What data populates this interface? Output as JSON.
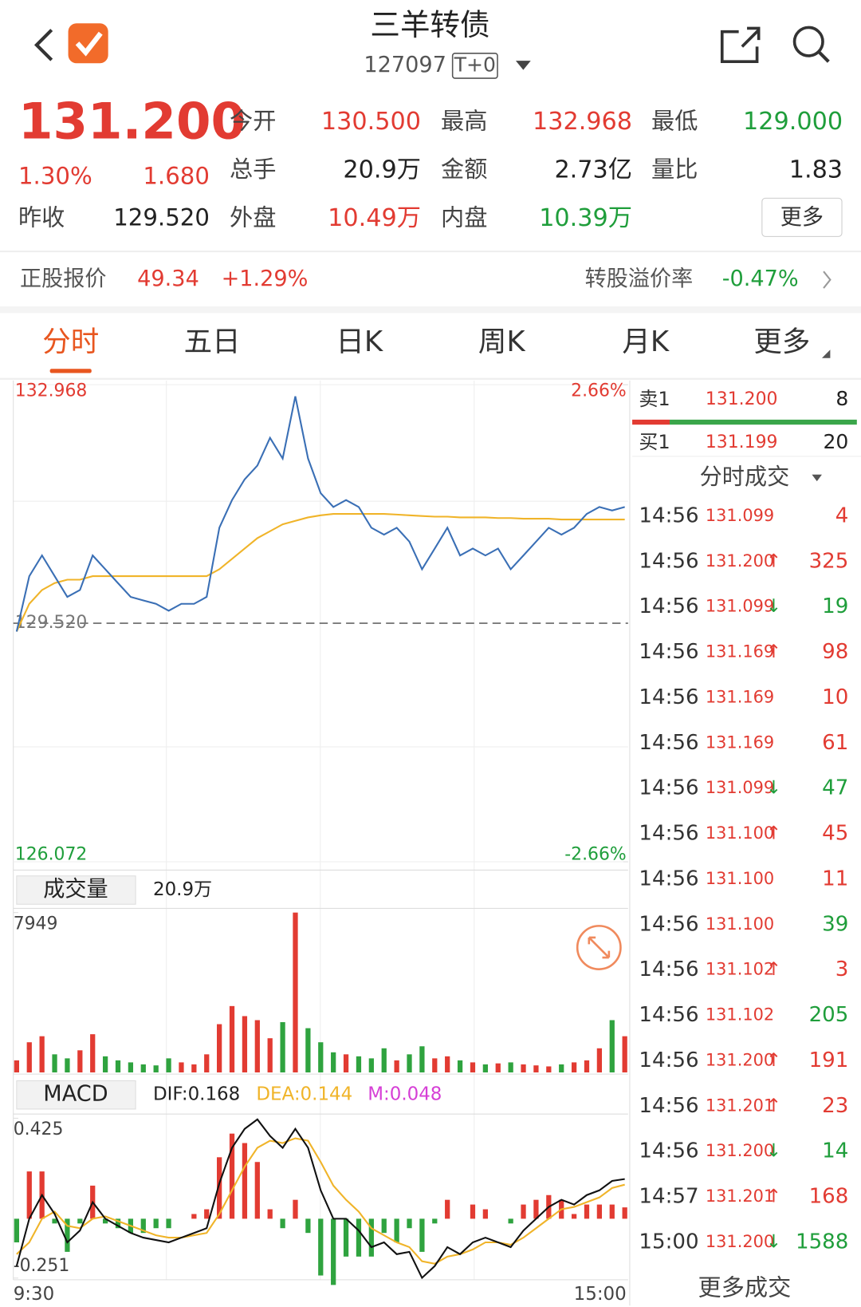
{
  "header": {
    "title": "三羊转债",
    "code": "127097",
    "tag": "T+0"
  },
  "quote": {
    "price": "131.200",
    "change_pct": "1.30%",
    "change": "1.680",
    "prev_close": {
      "label": "昨收",
      "value": "129.520"
    },
    "grid": [
      [
        {
          "label": "今开",
          "value": "130.500",
          "color": "red"
        },
        {
          "label": "最高",
          "value": "132.968",
          "color": "red"
        },
        {
          "label": "最低",
          "value": "129.000",
          "color": "green"
        }
      ],
      [
        {
          "label": "总手",
          "value": "20.9万",
          "color": "black"
        },
        {
          "label": "金额",
          "value": "2.73亿",
          "color": "black"
        },
        {
          "label": "量比",
          "value": "1.83",
          "color": "black"
        }
      ],
      [
        {
          "label": "外盘",
          "value": "10.49万",
          "color": "red"
        },
        {
          "label": "内盘",
          "value": "10.39万",
          "color": "green"
        }
      ]
    ],
    "more_button": "更多"
  },
  "stock": {
    "label": "正股报价",
    "price": "49.34",
    "change": "+1.29%",
    "premium_label": "转股溢价率",
    "premium": "-0.47%"
  },
  "tabs": [
    "分时",
    "五日",
    "日K",
    "周K",
    "月K",
    "更多"
  ],
  "active_tab": 0,
  "intraday": {
    "ylim": [
      126.072,
      132.968
    ],
    "yticks": [
      132.968,
      126.072
    ],
    "y2lim": [
      -2.66,
      2.66
    ],
    "y2ticks": [
      {
        "value": 2.66,
        "label": "2.66%"
      },
      {
        "value": -2.66,
        "label": "-2.66%"
      }
    ],
    "prev_close": {
      "value": 129.52,
      "label": "129.520"
    },
    "price_color": "#3a6fb5",
    "avg_color": "#f0b429",
    "price": [
      129.4,
      130.2,
      130.5,
      130.2,
      129.9,
      130.0,
      130.5,
      130.3,
      130.1,
      129.9,
      129.85,
      129.8,
      129.7,
      129.8,
      129.8,
      129.9,
      130.9,
      131.3,
      131.6,
      131.8,
      132.2,
      131.9,
      132.8,
      131.9,
      131.4,
      131.2,
      131.3,
      131.2,
      130.9,
      130.8,
      130.9,
      130.7,
      130.3,
      130.6,
      130.9,
      130.5,
      130.6,
      130.5,
      130.6,
      130.3,
      130.5,
      130.7,
      130.9,
      130.8,
      130.9,
      131.1,
      131.2,
      131.15,
      131.2
    ],
    "avg": [
      129.4,
      129.8,
      130.0,
      130.1,
      130.15,
      130.15,
      130.2,
      130.2,
      130.2,
      130.2,
      130.2,
      130.2,
      130.2,
      130.2,
      130.2,
      130.2,
      130.3,
      130.45,
      130.6,
      130.75,
      130.85,
      130.95,
      131.0,
      131.05,
      131.08,
      131.1,
      131.1,
      131.1,
      131.1,
      131.1,
      131.09,
      131.08,
      131.07,
      131.06,
      131.06,
      131.05,
      131.05,
      131.05,
      131.04,
      131.04,
      131.03,
      131.03,
      131.03,
      131.02,
      131.02,
      131.02,
      131.02,
      131.02,
      131.02
    ]
  },
  "volume": {
    "title": "成交量",
    "total": "20.9万",
    "ylim": [
      0,
      7949
    ],
    "yticks": [
      7949
    ],
    "values": [
      600,
      1500,
      1800,
      900,
      700,
      1100,
      1900,
      800,
      600,
      500,
      400,
      350,
      700,
      500,
      400,
      900,
      2400,
      3300,
      2800,
      2600,
      1700,
      2500,
      7949,
      2200,
      1500,
      1000,
      900,
      800,
      700,
      1200,
      600,
      900,
      1300,
      700,
      800,
      600,
      500,
      400,
      450,
      500,
      400,
      350,
      300,
      400,
      500,
      600,
      1200,
      2600,
      1800
    ]
  },
  "macd": {
    "title": "MACD",
    "dif_label": "DIF:0.168",
    "dea_label": "DEA:0.144",
    "m_label": "M:0.048",
    "ylim": [
      -0.251,
      0.425
    ],
    "yticks": [
      0.425,
      -0.251
    ],
    "dif": [
      -0.2,
      0.0,
      0.1,
      0.02,
      -0.1,
      -0.05,
      0.07,
      0.0,
      -0.03,
      -0.06,
      -0.08,
      -0.09,
      -0.1,
      -0.08,
      -0.06,
      -0.04,
      0.15,
      0.3,
      0.38,
      0.42,
      0.35,
      0.3,
      0.38,
      0.3,
      0.12,
      0.0,
      0.0,
      -0.05,
      -0.12,
      -0.1,
      -0.15,
      -0.14,
      -0.25,
      -0.2,
      -0.12,
      -0.15,
      -0.1,
      -0.08,
      -0.1,
      -0.12,
      -0.05,
      0.0,
      0.05,
      0.08,
      0.06,
      0.1,
      0.12,
      0.16,
      0.168
    ],
    "dea": [
      -0.15,
      -0.1,
      0.0,
      0.03,
      -0.03,
      -0.04,
      0.0,
      0.01,
      -0.01,
      -0.03,
      -0.05,
      -0.07,
      -0.08,
      -0.08,
      -0.07,
      -0.06,
      0.02,
      0.12,
      0.22,
      0.3,
      0.33,
      0.32,
      0.34,
      0.33,
      0.24,
      0.14,
      0.08,
      0.03,
      -0.04,
      -0.07,
      -0.1,
      -0.12,
      -0.18,
      -0.19,
      -0.16,
      -0.15,
      -0.13,
      -0.1,
      -0.1,
      -0.11,
      -0.08,
      -0.04,
      0.0,
      0.04,
      0.05,
      0.07,
      0.09,
      0.13,
      0.144
    ],
    "hist": [
      -0.1,
      0.2,
      0.2,
      -0.02,
      -0.14,
      -0.02,
      0.14,
      -0.02,
      -0.04,
      -0.06,
      -0.06,
      -0.04,
      -0.04,
      0,
      0.02,
      0.04,
      0.26,
      0.36,
      0.32,
      0.24,
      0.04,
      -0.04,
      0.08,
      -0.06,
      -0.24,
      -0.28,
      -0.16,
      -0.16,
      -0.16,
      -0.06,
      -0.1,
      -0.04,
      -0.14,
      -0.02,
      0.08,
      0,
      0.06,
      0.04,
      0,
      -0.02,
      0.06,
      0.08,
      0.1,
      0.08,
      0.02,
      0.06,
      0.06,
      0.06,
      0.048
    ]
  },
  "time_axis": [
    "9:30",
    "15:00"
  ],
  "order_book": [
    {
      "side": "卖1",
      "price": "131.200",
      "volume": "8"
    },
    {
      "side": "买1",
      "price": "131.199",
      "volume": "20"
    }
  ],
  "trades_title": "分时成交",
  "trades": [
    {
      "time": "14:56",
      "price": "131.099",
      "volume": "4",
      "color": "red"
    },
    {
      "time": "14:56",
      "price": "131.200",
      "arrow": "↑",
      "volume": "325",
      "color": "red"
    },
    {
      "time": "14:56",
      "price": "131.099",
      "arrow": "↓",
      "volume": "19",
      "color": "green"
    },
    {
      "time": "14:56",
      "price": "131.169",
      "arrow": "↑",
      "volume": "98",
      "color": "red"
    },
    {
      "time": "14:56",
      "price": "131.169",
      "volume": "10",
      "color": "red"
    },
    {
      "time": "14:56",
      "price": "131.169",
      "volume": "61",
      "color": "red"
    },
    {
      "time": "14:56",
      "price": "131.099",
      "arrow": "↓",
      "volume": "47",
      "color": "green"
    },
    {
      "time": "14:56",
      "price": "131.100",
      "arrow": "↑",
      "volume": "45",
      "color": "red"
    },
    {
      "time": "14:56",
      "price": "131.100",
      "volume": "11",
      "color": "red"
    },
    {
      "time": "14:56",
      "price": "131.100",
      "volume": "39",
      "color": "green"
    },
    {
      "time": "14:56",
      "price": "131.102",
      "arrow": "↑",
      "volume": "3",
      "color": "red"
    },
    {
      "time": "14:56",
      "price": "131.102",
      "volume": "205",
      "color": "green"
    },
    {
      "time": "14:56",
      "price": "131.200",
      "arrow": "↑",
      "volume": "191",
      "color": "red"
    },
    {
      "time": "14:56",
      "price": "131.201",
      "arrow": "↑",
      "volume": "23",
      "color": "red"
    },
    {
      "time": "14:56",
      "price": "131.200",
      "arrow": "↓",
      "volume": "14",
      "color": "green"
    },
    {
      "time": "14:57",
      "price": "131.201",
      "arrow": "↑",
      "volume": "168",
      "color": "red"
    },
    {
      "time": "15:00",
      "price": "131.200",
      "arrow": "↓",
      "volume": "1588",
      "color": "green"
    }
  ],
  "more_trades": "更多成交"
}
